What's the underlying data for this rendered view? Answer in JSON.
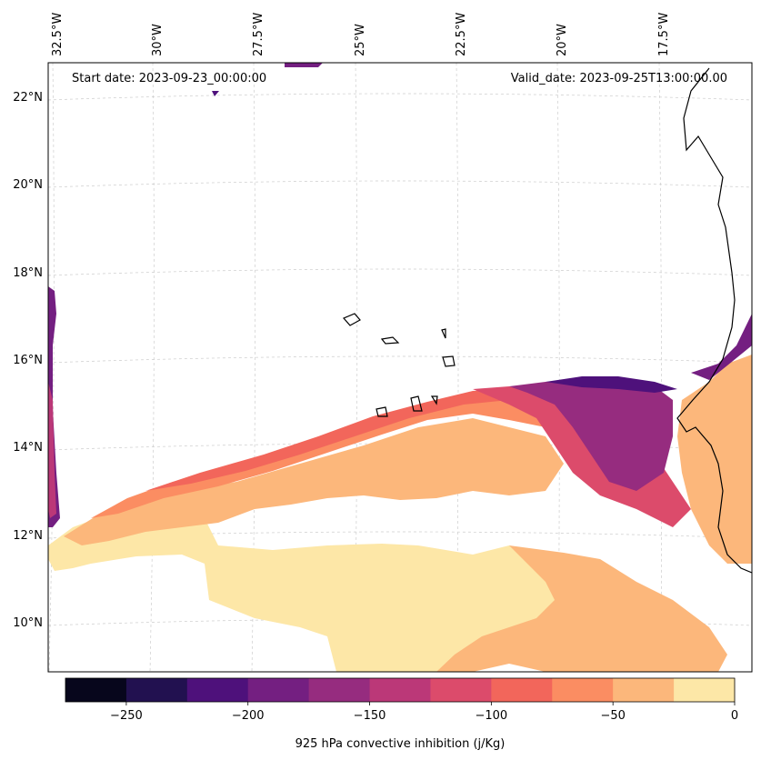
{
  "map": {
    "start_date": "Start date: 2023-09-23_00:00:00",
    "valid_date": "Valid_date: 2023-09-25T13:00:00.00",
    "lon_labels": [
      "32.5°W",
      "30°W",
      "27.5°W",
      "25°W",
      "22.5°W",
      "20°W",
      "17.5°W"
    ],
    "lat_labels": [
      "22°N",
      "20°N",
      "18°N",
      "16°N",
      "14°N",
      "12°N",
      "10°N"
    ]
  },
  "colorbar": {
    "title": "925 hPa convective inhibition (j/Kg)",
    "tick_labels": [
      "−250",
      "−200",
      "−150",
      "−100",
      "−50",
      "0"
    ],
    "colors": [
      "#07061c",
      "#221150",
      "#4e117b",
      "#741f81",
      "#962c7f",
      "#bb3878",
      "#dc4b6b",
      "#f2665b",
      "#fb8d62",
      "#fcb77b",
      "#fde7a7"
    ]
  }
}
